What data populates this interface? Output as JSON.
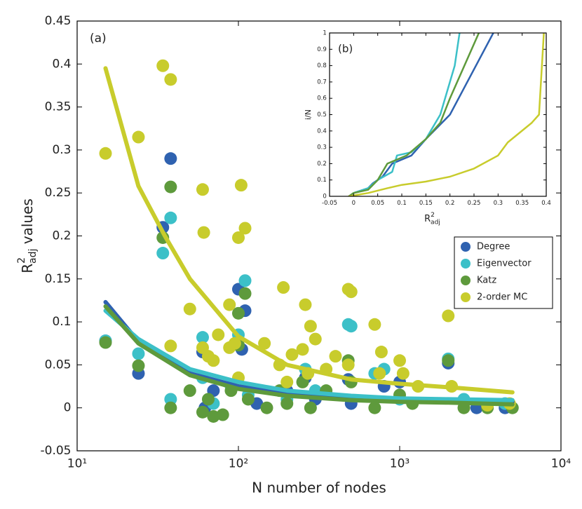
{
  "chart_data": [
    {
      "type": "scatter",
      "panel_label": "(a)",
      "x_label": "N number of nodes",
      "y_label": {
        "base": "R",
        "sup": "2",
        "sub": "adj",
        "text": " values"
      },
      "xscale": "log",
      "xlim": [
        10,
        10000
      ],
      "xticks": [
        {
          "value": 10,
          "label": "10¹"
        },
        {
          "value": 100,
          "label": "10²"
        },
        {
          "value": 1000,
          "label": "10³"
        },
        {
          "value": 10000,
          "label": "10⁴"
        }
      ],
      "ylim": [
        -0.05,
        0.45
      ],
      "yticks": [
        -0.05,
        0,
        0.05,
        0.1,
        0.15,
        0.2,
        0.25,
        0.3,
        0.35,
        0.4,
        0.45
      ],
      "legend": "right",
      "series": [
        {
          "name": "Degree",
          "color": "#2f62b0",
          "x": [
            15,
            24,
            34,
            38,
            60,
            62,
            70,
            100,
            105,
            110,
            130,
            200,
            260,
            300,
            480,
            500,
            800,
            1000,
            2000,
            3000,
            4500
          ],
          "values": [
            0.078,
            0.04,
            0.21,
            0.29,
            0.065,
            0.0,
            0.02,
            0.138,
            0.068,
            0.113,
            0.005,
            0.02,
            0.035,
            0.01,
            0.033,
            0.005,
            0.025,
            0.03,
            0.052,
            0.0,
            0.0
          ],
          "fit": {
            "x": [
              15,
              24,
              50,
              100,
              200,
              500,
              1000,
              2000,
              5000
            ],
            "values": [
              0.123,
              0.077,
              0.04,
              0.025,
              0.017,
              0.011,
              0.009,
              0.008,
              0.007
            ]
          }
        },
        {
          "name": "Eigenvector",
          "color": "#3cc0c8",
          "x": [
            15,
            24,
            34,
            38,
            38,
            60,
            60,
            70,
            90,
            100,
            110,
            115,
            200,
            260,
            300,
            480,
            500,
            700,
            800,
            1000,
            2000,
            2500,
            4500
          ],
          "values": [
            0.078,
            0.063,
            0.18,
            0.221,
            0.01,
            0.082,
            0.035,
            0.005,
            0.025,
            0.085,
            0.148,
            0.015,
            0.01,
            0.045,
            0.02,
            0.097,
            0.095,
            0.04,
            0.045,
            0.01,
            0.057,
            0.01,
            0.005
          ],
          "fit": {
            "x": [
              15,
              24,
              50,
              100,
              200,
              500,
              1000,
              2000,
              5000
            ],
            "values": [
              0.113,
              0.08,
              0.045,
              0.03,
              0.02,
              0.014,
              0.011,
              0.01,
              0.009
            ]
          }
        },
        {
          "name": "Katz",
          "color": "#5e9a3c",
          "x": [
            15,
            24,
            34,
            38,
            38,
            50,
            60,
            65,
            70,
            80,
            90,
            100,
            110,
            100,
            115,
            150,
            180,
            200,
            250,
            280,
            350,
            480,
            500,
            700,
            1000,
            1200,
            2000,
            2500,
            3500,
            5000
          ],
          "values": [
            0.076,
            0.049,
            0.198,
            0.257,
            0.0,
            0.02,
            -0.005,
            0.01,
            -0.01,
            -0.008,
            0.02,
            0.11,
            0.133,
            0.073,
            0.01,
            0.0,
            0.02,
            0.005,
            0.03,
            0.0,
            0.02,
            0.055,
            0.03,
            0.0,
            0.015,
            0.005,
            0.055,
            0.0,
            0.0,
            0.0
          ],
          "fit": {
            "x": [
              15,
              24,
              50,
              100,
              200,
              500,
              1000,
              2000,
              5000
            ],
            "values": [
              0.118,
              0.075,
              0.038,
              0.022,
              0.014,
              0.009,
              0.007,
              0.006,
              0.004
            ]
          }
        },
        {
          "name": "2-order MC",
          "color": "#c8cc2c",
          "x": [
            15,
            24,
            34,
            38,
            38,
            50,
            60,
            61,
            60,
            65,
            70,
            75,
            88,
            88,
            95,
            100,
            104,
            110,
            100,
            145,
            190,
            180,
            200,
            215,
            250,
            260,
            280,
            300,
            270,
            350,
            400,
            480,
            500,
            480,
            700,
            770,
            750,
            1000,
            1050,
            1300,
            2000,
            2100,
            4800,
            3500
          ],
          "values": [
            0.296,
            0.315,
            0.398,
            0.382,
            0.072,
            0.115,
            0.254,
            0.204,
            0.07,
            0.06,
            0.055,
            0.085,
            0.12,
            0.07,
            0.075,
            0.198,
            0.259,
            0.209,
            0.035,
            0.075,
            0.14,
            0.05,
            0.03,
            0.062,
            0.068,
            0.12,
            0.095,
            0.08,
            0.04,
            0.045,
            0.06,
            0.138,
            0.135,
            0.05,
            0.097,
            0.065,
            0.04,
            0.055,
            0.04,
            0.025,
            0.107,
            0.025,
            0.005,
            0.003
          ],
          "fit": {
            "x": [
              15,
              24,
              35,
              50,
              100,
              200,
              500,
              1000,
              2000,
              5000
            ],
            "values": [
              0.395,
              0.258,
              0.2,
              0.15,
              0.083,
              0.05,
              0.033,
              0.028,
              0.024,
              0.018
            ]
          }
        }
      ]
    },
    {
      "type": "line",
      "panel_label": "(b)",
      "x_label": {
        "base": "R",
        "sup": "2",
        "sub": "adj"
      },
      "y_label": "i/N",
      "xlim": [
        -0.05,
        0.4
      ],
      "xticks": [
        -0.05,
        0,
        0.05,
        0.1,
        0.15,
        0.2,
        0.25,
        0.3,
        0.35,
        0.4
      ],
      "ylim": [
        0,
        1
      ],
      "yticks": [
        0,
        0.1,
        0.2,
        0.3,
        0.4,
        0.5,
        0.6,
        0.7,
        0.8,
        0.9,
        1
      ],
      "series": [
        {
          "color": "#2f62b0",
          "x": [
            -0.01,
            0.0,
            0.03,
            0.04,
            0.06,
            0.08,
            0.12,
            0.15,
            0.2,
            0.29
          ],
          "values": [
            0,
            0.02,
            0.05,
            0.08,
            0.12,
            0.2,
            0.25,
            0.35,
            0.5,
            1.0
          ]
        },
        {
          "color": "#3cc0c8",
          "x": [
            -0.01,
            0.0,
            0.03,
            0.05,
            0.08,
            0.09,
            0.12,
            0.15,
            0.18,
            0.21,
            0.22
          ],
          "values": [
            0,
            0.02,
            0.05,
            0.1,
            0.15,
            0.25,
            0.27,
            0.35,
            0.5,
            0.8,
            1.0
          ]
        },
        {
          "color": "#5e9a3c",
          "x": [
            -0.01,
            0.0,
            0.03,
            0.05,
            0.07,
            0.11,
            0.15,
            0.18,
            0.2,
            0.26
          ],
          "values": [
            0,
            0.02,
            0.04,
            0.1,
            0.2,
            0.25,
            0.35,
            0.45,
            0.6,
            1.0
          ]
        },
        {
          "color": "#c8cc2c",
          "x": [
            -0.01,
            0.03,
            0.07,
            0.1,
            0.15,
            0.2,
            0.25,
            0.3,
            0.32,
            0.37,
            0.385,
            0.395
          ],
          "values": [
            0,
            0.02,
            0.05,
            0.07,
            0.09,
            0.12,
            0.17,
            0.25,
            0.33,
            0.45,
            0.5,
            1.0
          ]
        }
      ]
    }
  ]
}
